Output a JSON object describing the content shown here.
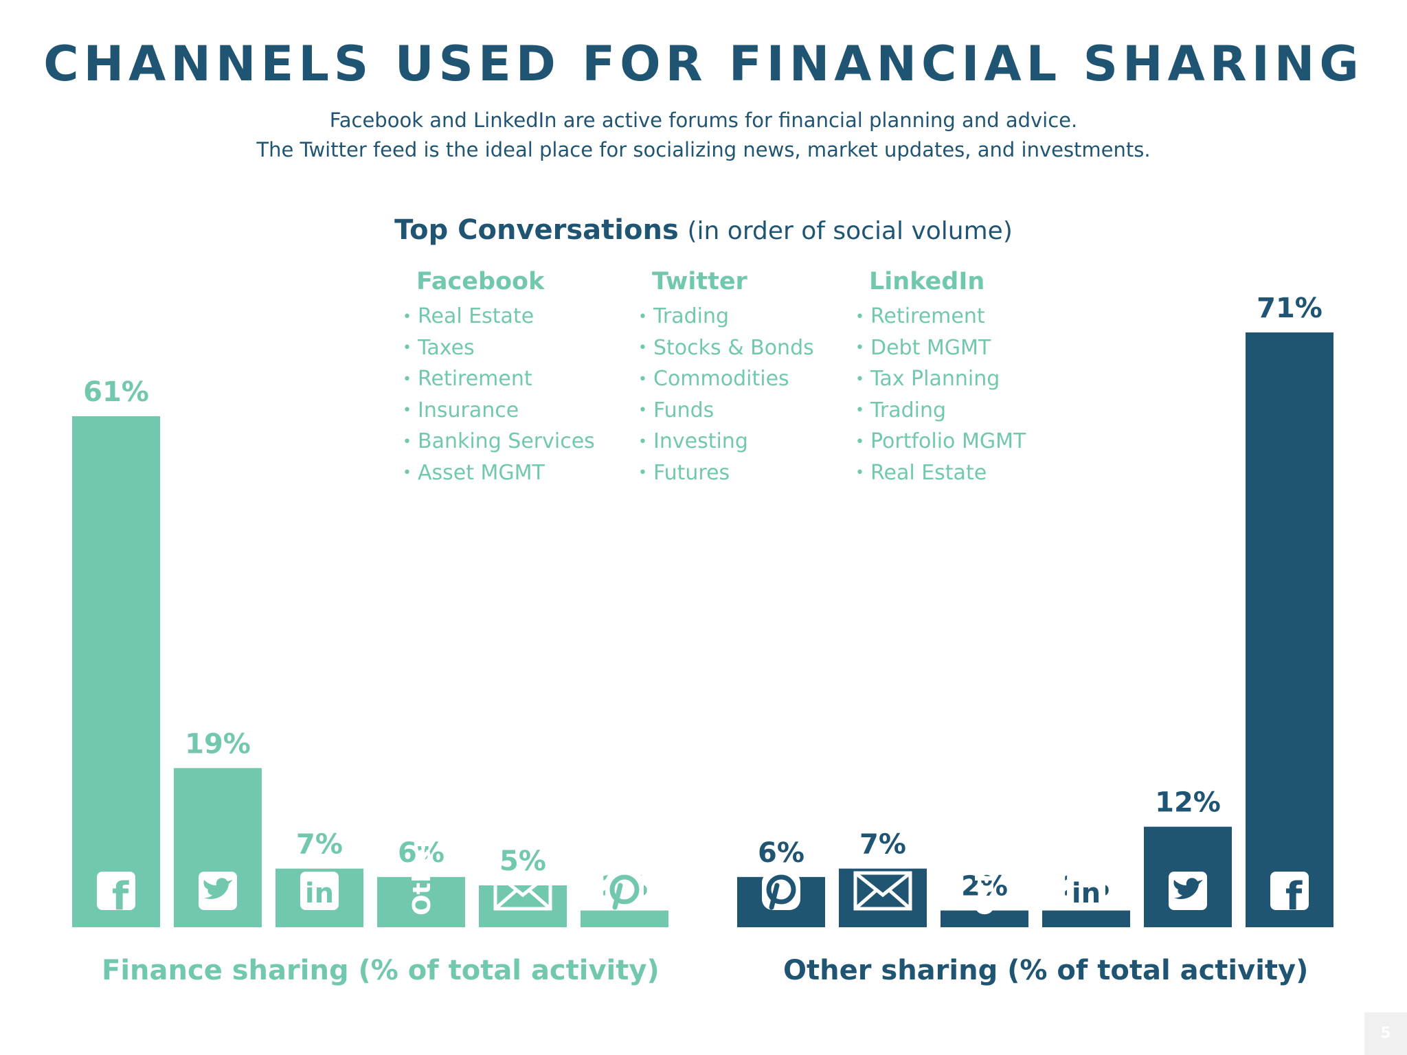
{
  "title": "CHANNELS USED FOR FINANCIAL SHARING",
  "subtitle_line1": "Facebook and LinkedIn are active forums for financial planning and advice.",
  "subtitle_line2": "The Twitter feed is the ideal place for socializing news, market updates, and investments.",
  "top_conversations": {
    "heading": "Top Conversations",
    "heading_note": "(in order of social volume)",
    "columns": [
      {
        "name": "Facebook",
        "items": [
          "Real Estate",
          "Taxes",
          "Retirement",
          "Insurance",
          "Banking Services",
          "Asset MGMT"
        ]
      },
      {
        "name": "Twitter",
        "items": [
          "Trading",
          "Stocks & Bonds",
          "Commodities",
          "Funds",
          "Investing",
          "Futures"
        ]
      },
      {
        "name": "LinkedIn",
        "items": [
          "Retirement",
          "Debt MGMT",
          "Tax Planning",
          "Trading",
          "Portfolio MGMT",
          "Real Estate"
        ]
      }
    ]
  },
  "chart_data": [
    {
      "type": "bar",
      "title": "Finance sharing (% of total activity)",
      "categories": [
        "facebook",
        "twitter",
        "linkedin",
        "Other",
        "email",
        "pinterest"
      ],
      "values": [
        61,
        19,
        7,
        6,
        5,
        2
      ],
      "value_labels": [
        "61%",
        "19%",
        "7%",
        "6%",
        "5%",
        "2%"
      ],
      "color": "#72c8ae",
      "ylim": [
        0,
        71
      ],
      "grid": false
    },
    {
      "type": "bar",
      "title": "Other sharing (% of total activity)",
      "categories": [
        "pinterest",
        "email",
        "Other",
        "linkedin",
        "twitter",
        "facebook"
      ],
      "values": [
        6,
        7,
        2,
        2,
        12,
        71
      ],
      "value_labels": [
        "6%",
        "7%",
        "2%",
        "2%",
        "12%",
        "71%"
      ],
      "color": "#1f5573",
      "ylim": [
        0,
        71
      ],
      "grid": false
    }
  ],
  "page_number": "5",
  "colors": {
    "teal": "#72c8ae",
    "navy": "#1f5573"
  }
}
